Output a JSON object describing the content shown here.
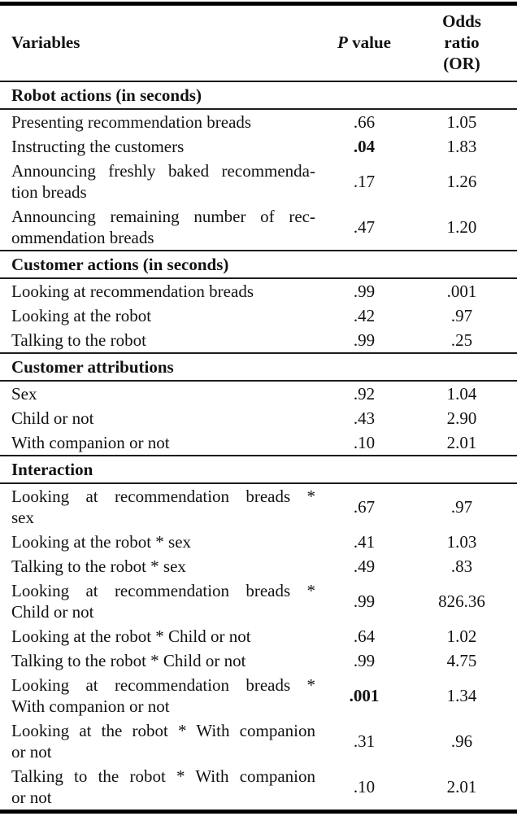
{
  "colors": {
    "background": "#ffffff",
    "text": "#121212",
    "rule": "#000000"
  },
  "table": {
    "header": {
      "variables_label": "Variables",
      "p_symbol": "P",
      "p_rest": "value",
      "or_lines": [
        "Odds",
        "ratio",
        "(OR)"
      ]
    },
    "sections": [
      {
        "title": "Robot actions (in seconds)",
        "rows": [
          {
            "lines": [
              "Presenting recommendation breads"
            ],
            "p": ".66",
            "p_bold": false,
            "or": "1.05"
          },
          {
            "lines": [
              "Instructing the customers"
            ],
            "p": ".04",
            "p_bold": true,
            "or": "1.83"
          },
          {
            "lines": [
              "Announcing freshly baked recommenda-",
              "tion breads"
            ],
            "p": ".17",
            "p_bold": false,
            "or": "1.26"
          },
          {
            "lines": [
              "Announcing remaining number of rec-",
              "ommendation breads"
            ],
            "p": ".47",
            "p_bold": false,
            "or": "1.20"
          }
        ]
      },
      {
        "title": "Customer actions (in seconds)",
        "rows": [
          {
            "lines": [
              "Looking at recommendation breads"
            ],
            "p": ".99",
            "p_bold": false,
            "or": ".001"
          },
          {
            "lines": [
              "Looking at the robot"
            ],
            "p": ".42",
            "p_bold": false,
            "or": ".97"
          },
          {
            "lines": [
              "Talking to the robot"
            ],
            "p": ".99",
            "p_bold": false,
            "or": ".25"
          }
        ]
      },
      {
        "title": "Customer attributions",
        "rows": [
          {
            "lines": [
              "Sex"
            ],
            "p": ".92",
            "p_bold": false,
            "or": "1.04"
          },
          {
            "lines": [
              "Child or not"
            ],
            "p": ".43",
            "p_bold": false,
            "or": "2.90"
          },
          {
            "lines": [
              "With companion or not"
            ],
            "p": ".10",
            "p_bold": false,
            "or": "2.01"
          }
        ]
      },
      {
        "title": "Interaction",
        "rows": [
          {
            "lines": [
              "Looking at recommendation breads *",
              "sex"
            ],
            "p": ".67",
            "p_bold": false,
            "or": ".97"
          },
          {
            "lines": [
              "Looking at the robot * sex"
            ],
            "p": ".41",
            "p_bold": false,
            "or": "1.03"
          },
          {
            "lines": [
              "Talking to the robot * sex"
            ],
            "p": ".49",
            "p_bold": false,
            "or": ".83"
          },
          {
            "lines": [
              "Looking at recommendation breads *",
              "Child or not"
            ],
            "p": ".99",
            "p_bold": false,
            "or": "826.36"
          },
          {
            "lines": [
              "Looking at the robot * Child or not"
            ],
            "p": ".64",
            "p_bold": false,
            "or": "1.02"
          },
          {
            "lines": [
              "Talking to the robot * Child or not"
            ],
            "p": ".99",
            "p_bold": false,
            "or": "4.75"
          },
          {
            "lines": [
              "Looking at recommendation breads *",
              "With companion or not"
            ],
            "p": ".001",
            "p_bold": true,
            "or": "1.34"
          },
          {
            "lines": [
              "Looking at the robot * With companion",
              "or not"
            ],
            "p": ".31",
            "p_bold": false,
            "or": ".96"
          },
          {
            "lines": [
              "Talking to the robot * With companion",
              "or not"
            ],
            "p": ".10",
            "p_bold": false,
            "or": "2.01"
          }
        ]
      }
    ]
  }
}
